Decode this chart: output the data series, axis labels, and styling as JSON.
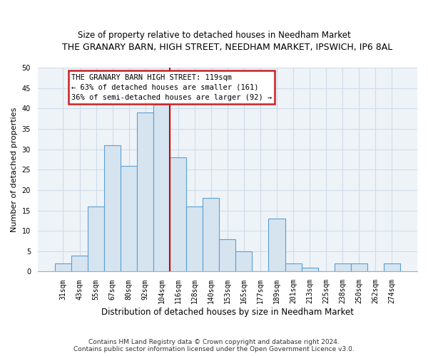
{
  "title": "THE GRANARY BARN, HIGH STREET, NEEDHAM MARKET, IPSWICH, IP6 8AL",
  "subtitle": "Size of property relative to detached houses in Needham Market",
  "xlabel": "Distribution of detached houses by size in Needham Market",
  "ylabel": "Number of detached properties",
  "bar_labels": [
    "31sqm",
    "43sqm",
    "55sqm",
    "67sqm",
    "80sqm",
    "92sqm",
    "104sqm",
    "116sqm",
    "128sqm",
    "140sqm",
    "153sqm",
    "165sqm",
    "177sqm",
    "189sqm",
    "201sqm",
    "213sqm",
    "225sqm",
    "238sqm",
    "250sqm",
    "262sqm",
    "274sqm"
  ],
  "bar_values": [
    2,
    4,
    16,
    31,
    26,
    39,
    41,
    28,
    16,
    18,
    8,
    5,
    0,
    13,
    2,
    1,
    0,
    2,
    2,
    0,
    2
  ],
  "bar_color": "#d6e4f0",
  "bar_edge_color": "#5a9fd4",
  "vline_index": 6.5,
  "vline_color": "#cc0000",
  "ylim": [
    0,
    50
  ],
  "yticks": [
    0,
    5,
    10,
    15,
    20,
    25,
    30,
    35,
    40,
    45,
    50
  ],
  "annotation_title": "THE GRANARY BARN HIGH STREET: 119sqm",
  "annotation_line1": "← 63% of detached houses are smaller (161)",
  "annotation_line2": "36% of semi-detached houses are larger (92) →",
  "footer1": "Contains HM Land Registry data © Crown copyright and database right 2024.",
  "footer2": "Contains public sector information licensed under the Open Government Licence v3.0.",
  "background_color": "#ffffff",
  "plot_bg_color": "#eef3f8",
  "grid_color": "#d0dce8",
  "title_fontsize": 9,
  "subtitle_fontsize": 8.5,
  "ylabel_fontsize": 8,
  "xlabel_fontsize": 8.5,
  "tick_fontsize": 7,
  "annotation_fontsize": 7.5,
  "footer_fontsize": 6.5
}
